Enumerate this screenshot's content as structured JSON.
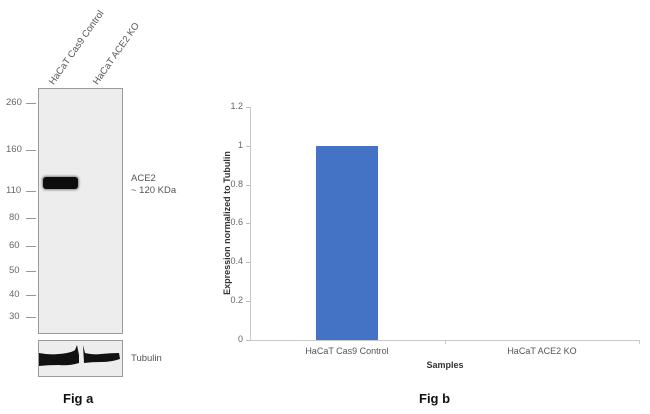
{
  "fig_a": {
    "caption": "Fig a",
    "lanes": [
      "HaCaT Cas9 Control",
      "HaCaT ACE2 KO"
    ],
    "markers_kda": [
      "260",
      "160",
      "110",
      "80",
      "60",
      "50",
      "40",
      "30"
    ],
    "band_annotation": {
      "line1": "ACE2",
      "line2": "~ 120 KDa"
    },
    "loading_control_label": "Tubulin"
  },
  "fig_b": {
    "caption": "Fig b"
  },
  "chart_data": {
    "type": "bar",
    "title": "",
    "categories": [
      "HaCaT Cas9 Control",
      "HaCaT ACE2 KO"
    ],
    "values": [
      1.0,
      0.0
    ],
    "xlabel": "Samples",
    "ylabel": "Expression  normalized to Tubulin",
    "ylim": [
      0,
      1.2
    ],
    "yticks": [
      "0",
      "0.2",
      "0.4",
      "0.6",
      "0.8",
      "1",
      "1.2"
    ],
    "grid": false,
    "legend": null,
    "bar_color": "#4472c4"
  }
}
